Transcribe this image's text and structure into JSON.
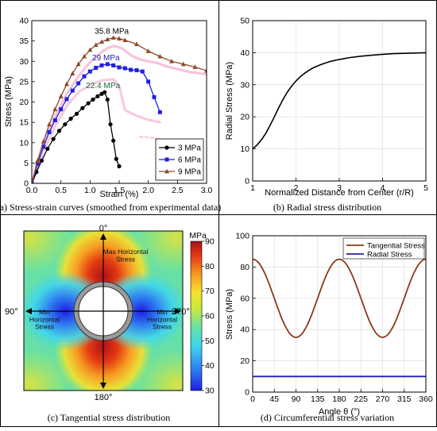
{
  "chart_data": [
    {
      "type": "line",
      "caption": "(a) Stress-strain curves (smoothed from experimental data)",
      "xlabel": "Strain (%)",
      "ylabel": "Stress (MPa)",
      "xlim": [
        0,
        3.0
      ],
      "ylim": [
        0,
        40
      ],
      "xticks": [
        "0.0",
        "0.5",
        "1.0",
        "1.5",
        "2.0",
        "2.5",
        "3.0"
      ],
      "yticks": [
        "0",
        "5",
        "10",
        "15",
        "20",
        "25",
        "30",
        "35",
        "40"
      ],
      "legend_placement": "bottom-right",
      "colors": {
        "s3": "#000000",
        "s6": "#1f1fe6",
        "s9": "#8b4a2b",
        "bg_pink": "#f6b8d6",
        "bg_pink2": "#f3c1dc"
      },
      "series": [
        {
          "name": "3 MPa",
          "marker": "circle",
          "x": [
            0,
            0.08,
            0.17,
            0.27,
            0.37,
            0.47,
            0.57,
            0.67,
            0.77,
            0.87,
            0.97,
            1.05,
            1.13,
            1.2,
            1.25,
            1.3,
            1.35,
            1.4,
            1.45,
            1.5
          ],
          "y": [
            0,
            2.8,
            5.6,
            8.5,
            10.9,
            12.9,
            14.5,
            15.9,
            17.1,
            18.5,
            19.7,
            20.6,
            21.4,
            22.0,
            22.4,
            20.6,
            14.5,
            10.5,
            6.0,
            4.2
          ]
        },
        {
          "name": "6 MPa",
          "marker": "square",
          "x": [
            0,
            0.1,
            0.2,
            0.3,
            0.4,
            0.5,
            0.6,
            0.7,
            0.8,
            0.9,
            1.0,
            1.1,
            1.2,
            1.3,
            1.4,
            1.5,
            1.6,
            1.7,
            1.8,
            1.9,
            2.0,
            2.1,
            2.2
          ],
          "y": [
            0,
            4.8,
            9.0,
            12.6,
            15.5,
            18.2,
            20.7,
            22.8,
            24.6,
            26.3,
            27.5,
            28.4,
            29.0,
            29.3,
            29.0,
            28.5,
            28.3,
            27.9,
            27.8,
            27.5,
            25.0,
            21.2,
            17.5
          ]
        },
        {
          "name": "9 MPa",
          "marker": "triangle",
          "x": [
            0,
            0.1,
            0.2,
            0.3,
            0.4,
            0.5,
            0.6,
            0.7,
            0.8,
            0.9,
            1.0,
            1.1,
            1.2,
            1.3,
            1.4,
            1.5,
            1.6,
            1.8,
            2.0,
            2.2,
            2.4,
            2.6,
            2.8,
            3.0
          ],
          "y": [
            0,
            5.6,
            10.3,
            14.5,
            18.2,
            21.4,
            24.4,
            27.0,
            29.3,
            31.2,
            32.8,
            34.0,
            34.8,
            35.4,
            35.8,
            35.6,
            35.2,
            34.2,
            32.5,
            31.2,
            30.0,
            29.3,
            28.6,
            27.7
          ]
        }
      ],
      "background_curves": [
        {
          "x": [
            0,
            0.2,
            0.4,
            0.6,
            0.8,
            1.0,
            1.2,
            1.3,
            1.4,
            1.55,
            1.7,
            1.85,
            2.0,
            2.15,
            2.3,
            2.5,
            2.7,
            3.0
          ],
          "y": [
            0,
            9.5,
            16.5,
            22.0,
            26.3,
            29.8,
            32.3,
            33.2,
            33.8,
            33.2,
            31.5,
            30.5,
            30.0,
            29.6,
            28.8,
            28.1,
            27.4,
            26.8
          ]
        },
        {
          "x": [
            0,
            0.2,
            0.4,
            0.6,
            0.8,
            1.0,
            1.2,
            1.4,
            1.5,
            1.6,
            1.8,
            2.0,
            2.2
          ],
          "y": [
            0,
            8.0,
            14.0,
            19.0,
            22.4,
            24.2,
            25.3,
            25.6,
            24.0,
            18.0,
            16.6,
            15.6,
            15.0
          ]
        },
        {
          "x": [
            1.85,
            2.0,
            2.15,
            2.3
          ],
          "y": [
            11.5,
            11.3,
            11.0,
            10.8
          ]
        }
      ],
      "annotations": [
        {
          "text": "35.8 MPa",
          "x": 1.4,
          "y": 35.8
        },
        {
          "text": "29 MPa",
          "x": 1.3,
          "y": 29.3
        },
        {
          "text": "22.4 MPa",
          "x": 1.25,
          "y": 22.4
        }
      ]
    },
    {
      "type": "line",
      "caption": "(b) Radial stress distribution",
      "xlabel": "Normalized Distance from Center (r/R)",
      "ylabel": "Radial Stress (MPa)",
      "xlim": [
        1,
        5
      ],
      "ylim": [
        0,
        50
      ],
      "xticks": [
        "1",
        "2",
        "3",
        "4",
        "5"
      ],
      "yticks": [
        "0",
        "10",
        "20",
        "30",
        "40",
        "50"
      ],
      "grid": true,
      "colors": {
        "line": "#000000"
      },
      "series": [
        {
          "x": [
            1.0,
            1.1,
            1.2,
            1.3,
            1.4,
            1.5,
            1.6,
            1.7,
            1.8,
            1.9,
            2.0,
            2.1,
            2.2,
            2.3,
            2.4,
            2.5,
            2.6,
            2.8,
            3.0,
            3.25,
            3.5,
            3.75,
            4.0,
            4.25,
            4.5,
            4.75,
            5.0
          ],
          "y": [
            10.0,
            11.2,
            12.8,
            14.8,
            17.3,
            20.0,
            22.8,
            25.4,
            27.7,
            29.6,
            31.2,
            32.5,
            33.6,
            34.5,
            35.3,
            35.9,
            36.4,
            37.3,
            37.9,
            38.5,
            38.9,
            39.2,
            39.5,
            39.7,
            39.8,
            39.9,
            40.0
          ]
        }
      ]
    },
    {
      "type": "heatmap",
      "caption": "(c) Tangential stress distribution",
      "colorbar_title": "MPa",
      "colorbar_range": [
        30,
        90
      ],
      "colorbar_ticks": [
        "30",
        "40",
        "50",
        "60",
        "70",
        "80",
        "90"
      ],
      "colors": {
        "stop0": "#1d1fe0",
        "stop1": "#2f7cf0",
        "stop2": "#3fd6ee",
        "stop3": "#66e0a8",
        "stop4": "#c9ea3a",
        "stop5": "#f7e02c",
        "stop6": "#f79a22",
        "stop7": "#e33a12",
        "stop8": "#b0101a"
      },
      "annotations": [
        {
          "text": "0°",
          "position": "top"
        },
        {
          "text": "180°",
          "position": "bottom"
        },
        {
          "text": "90°",
          "position": "left"
        },
        {
          "text": "270°",
          "position": "right"
        },
        {
          "text": "Max Horizontal Stress",
          "position": "upper-center"
        },
        {
          "text": "Min Horizontal Stress",
          "position": "left-center"
        },
        {
          "text": "Min Horizontal Stress",
          "position": "right-center"
        }
      ]
    },
    {
      "type": "line",
      "caption": "(d) Circumferential stress variation",
      "xlabel": "Angle θ (°)",
      "ylabel": "Stress (MPa)",
      "xlim": [
        0,
        360
      ],
      "ylim": [
        0,
        100
      ],
      "xticks": [
        "0",
        "45",
        "90",
        "135",
        "180",
        "225",
        "270",
        "315",
        "360"
      ],
      "yticks": [
        "0",
        "20",
        "40",
        "60",
        "80",
        "100"
      ],
      "grid": true,
      "legend_placement": "top-right",
      "colors": {
        "tangential": "#8b3a1a",
        "radial": "#1f1fb4"
      },
      "series": [
        {
          "name": "Tangential Stress",
          "x": [
            0,
            15,
            30,
            45,
            60,
            75,
            90,
            105,
            120,
            135,
            150,
            165,
            180,
            195,
            210,
            225,
            240,
            255,
            270,
            285,
            300,
            315,
            330,
            345,
            360
          ],
          "y": [
            85,
            83,
            77,
            60,
            44,
            37,
            35,
            37,
            44,
            60,
            77,
            83,
            85,
            83,
            77,
            60,
            44,
            37,
            35,
            37,
            44,
            60,
            77,
            83,
            85
          ]
        },
        {
          "name": "Radial Stress",
          "x": [
            0,
            360
          ],
          "y": [
            10,
            10
          ]
        }
      ]
    }
  ]
}
